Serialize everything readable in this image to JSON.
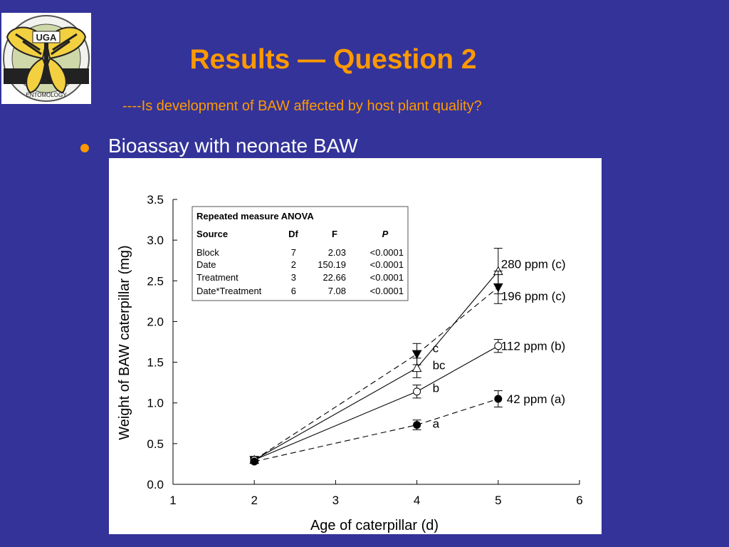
{
  "slide": {
    "title": "Results — Question 2",
    "subtitle": "----Is development of BAW affected by host plant quality?",
    "bullet": "Bioassay with neonate BAW"
  },
  "logo": {
    "top_text": "UGA",
    "bottom_text": "ENTOMOLOGY",
    "icon": "swallowtail-butterfly-logo"
  },
  "colors": {
    "background": "#333399",
    "accent": "#ff9900",
    "text": "#ffffff"
  },
  "anova": {
    "heading": "Repeated measure ANOVA",
    "headers": [
      "Source",
      "Df",
      "F",
      "P"
    ],
    "rows": [
      [
        "Block",
        "7",
        "2.03",
        "<0.0001"
      ],
      [
        "Date",
        "2",
        "150.19",
        "<0.0001"
      ],
      [
        "Treatment",
        "3",
        "22.66",
        "<0.0001"
      ],
      [
        "Date*Treatment",
        "6",
        "7.08",
        "<0.0001"
      ]
    ]
  },
  "chart_data": {
    "type": "line",
    "xlabel": "Age of caterpillar (d)",
    "ylabel": "Weight of BAW caterpillar (mg)",
    "xlim": [
      1,
      6
    ],
    "ylim": [
      0,
      3.5
    ],
    "xticks": [
      "1",
      "2",
      "3",
      "4",
      "5",
      "6"
    ],
    "yticks": [
      "0.0",
      "0.5",
      "1.0",
      "1.5",
      "2.0",
      "2.5",
      "3.0",
      "3.5"
    ],
    "grid": false,
    "series": [
      {
        "name": "280 ppm (c)",
        "marker": "triangle-up-open",
        "line": "solid",
        "x": [
          2,
          4,
          5
        ],
        "y": [
          0.3,
          1.43,
          2.62
        ],
        "err": [
          0.02,
          0.12,
          0.28
        ]
      },
      {
        "name": "196 ppm (c)",
        "marker": "triangle-down-filled",
        "line": "dashed",
        "x": [
          2,
          4,
          5
        ],
        "y": [
          0.3,
          1.6,
          2.42
        ],
        "err": [
          0.02,
          0.13,
          0.2
        ]
      },
      {
        "name": "112 ppm (b)",
        "marker": "circle-open",
        "line": "solid",
        "x": [
          2,
          4,
          5
        ],
        "y": [
          0.3,
          1.14,
          1.7
        ],
        "err": [
          0.02,
          0.08,
          0.08
        ]
      },
      {
        "name": "42 ppm (a)",
        "marker": "circle-filled",
        "line": "dashed",
        "x": [
          2,
          4,
          5
        ],
        "y": [
          0.28,
          0.73,
          1.05
        ],
        "err": [
          0.02,
          0.06,
          0.1
        ]
      }
    ],
    "annotations": [
      {
        "text": "c",
        "x": 4,
        "y": 1.66
      },
      {
        "text": "bc",
        "x": 4,
        "y": 1.45
      },
      {
        "text": "b",
        "x": 4,
        "y": 1.17
      },
      {
        "text": "a",
        "x": 4,
        "y": 0.73
      }
    ]
  }
}
